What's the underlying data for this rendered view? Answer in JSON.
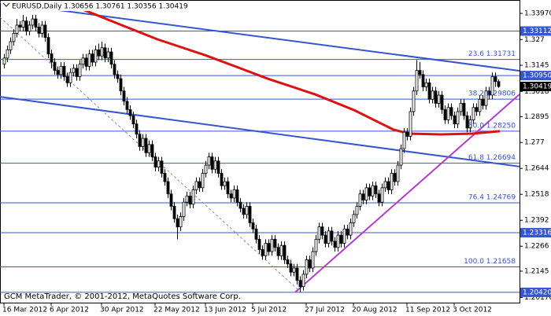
{
  "chart_data": {
    "type": "candlestick",
    "title": "EURUSD,Daily 1.30656 1.30761 1.30356 1.30419",
    "footer": "GCM MetaTrader, © 2001-2012, MetaQuotes Software Corp.",
    "categories": [
      "16 Mar 2012",
      null,
      null,
      null,
      null,
      null,
      null,
      null,
      null,
      null,
      null,
      null,
      null,
      null,
      null,
      "6 Apr 2012",
      null,
      null,
      null,
      null,
      null,
      null,
      null,
      null,
      null,
      null,
      null,
      null,
      null,
      null,
      null,
      "30 Apr 2012",
      null,
      null,
      null,
      null,
      null,
      null,
      null,
      null,
      null,
      null,
      null,
      null,
      null,
      null,
      null,
      null,
      "22 May 2012",
      null,
      null,
      null,
      null,
      null,
      null,
      null,
      null,
      null,
      null,
      null,
      null,
      null,
      null,
      null,
      "13 Jun 2012",
      null,
      null,
      null,
      null,
      null,
      null,
      null,
      null,
      null,
      null,
      null,
      null,
      null,
      null,
      "5 Jul 2012",
      null,
      null,
      null,
      null,
      null,
      null,
      null,
      null,
      null,
      null,
      null,
      null,
      null,
      null,
      null,
      null,
      "27 Jul 2012",
      null,
      null,
      null,
      null,
      null,
      null,
      null,
      null,
      null,
      null,
      null,
      null,
      null,
      null,
      "20 Aug 2012",
      null,
      null,
      null,
      null,
      null,
      null,
      null,
      null,
      null,
      null,
      null,
      null,
      null,
      null,
      null,
      null,
      "11 Sep 2012",
      null,
      null,
      null,
      null,
      null,
      null,
      null,
      null,
      null,
      null,
      null,
      null,
      null,
      null,
      "3 Oct 2012",
      null,
      null,
      null,
      null,
      null,
      null,
      null,
      null,
      null,
      null,
      null,
      null,
      null,
      null
    ],
    "open": [
      1.315,
      1.318,
      1.322,
      1.326,
      1.33,
      1.334,
      1.333,
      1.336,
      1.331,
      1.334,
      1.337,
      1.333,
      1.33,
      1.334,
      1.328,
      1.32,
      1.316,
      1.312,
      1.31,
      1.314,
      1.309,
      1.306,
      1.311,
      1.313,
      1.309,
      1.315,
      1.318,
      1.314,
      1.32,
      1.316,
      1.322,
      1.319,
      1.323,
      1.318,
      1.321,
      1.315,
      1.31,
      1.308,
      1.302,
      1.297,
      1.293,
      1.29,
      1.286,
      1.281,
      1.275,
      1.279,
      1.272,
      1.276,
      1.27,
      1.265,
      1.268,
      1.262,
      1.258,
      1.252,
      1.246,
      1.24,
      1.236,
      1.241,
      1.248,
      1.251,
      1.247,
      1.254,
      1.258,
      1.255,
      1.262,
      1.266,
      1.27,
      1.264,
      1.268,
      1.262,
      1.256,
      1.258,
      1.252,
      1.25,
      1.254,
      1.248,
      1.245,
      1.242,
      1.246,
      1.238,
      1.235,
      1.23,
      1.225,
      1.222,
      1.228,
      1.224,
      1.23,
      1.226,
      1.222,
      1.227,
      1.22,
      1.218,
      1.214,
      1.216,
      1.21,
      1.207,
      1.213,
      1.22,
      1.216,
      1.224,
      1.23,
      1.236,
      1.232,
      1.228,
      1.234,
      1.229,
      1.226,
      1.232,
      1.228,
      1.235,
      1.232,
      1.238,
      1.242,
      1.246,
      1.252,
      1.249,
      1.255,
      1.251,
      1.256,
      1.252,
      1.248,
      1.255,
      1.258,
      1.254,
      1.262,
      1.258,
      1.266,
      1.274,
      1.282,
      1.28,
      1.292,
      1.302,
      1.312,
      1.31,
      1.304,
      1.306,
      1.298,
      1.302,
      1.296,
      1.3,
      1.293,
      1.288,
      1.294,
      1.29,
      1.286,
      1.292,
      1.296,
      1.29,
      1.284,
      1.288,
      1.294,
      1.292,
      1.298,
      1.295,
      1.302,
      1.3,
      1.309,
      1.30656
    ],
    "high": [
      1.32,
      1.324,
      1.328,
      1.332,
      1.337,
      1.336,
      1.339,
      1.338,
      1.336,
      1.339,
      1.339,
      1.335,
      1.336,
      1.336,
      1.33,
      1.322,
      1.318,
      1.314,
      1.316,
      1.316,
      1.311,
      1.313,
      1.315,
      1.315,
      1.317,
      1.32,
      1.32,
      1.322,
      1.322,
      1.324,
      1.325,
      1.326,
      1.325,
      1.323,
      1.323,
      1.317,
      1.312,
      1.31,
      1.304,
      1.299,
      1.295,
      1.292,
      1.288,
      1.283,
      1.281,
      1.281,
      1.278,
      1.278,
      1.272,
      1.27,
      1.27,
      1.264,
      1.26,
      1.254,
      1.248,
      1.242,
      1.243,
      1.25,
      1.253,
      1.253,
      1.256,
      1.26,
      1.26,
      1.264,
      1.268,
      1.272,
      1.272,
      1.27,
      1.27,
      1.264,
      1.26,
      1.26,
      1.254,
      1.256,
      1.256,
      1.25,
      1.247,
      1.248,
      1.248,
      1.24,
      1.237,
      1.232,
      1.227,
      1.23,
      1.23,
      1.232,
      1.232,
      1.228,
      1.229,
      1.229,
      1.222,
      1.22,
      1.218,
      1.218,
      1.212,
      1.215,
      1.222,
      1.222,
      1.226,
      1.232,
      1.238,
      1.238,
      1.234,
      1.236,
      1.236,
      1.231,
      1.234,
      1.234,
      1.237,
      1.237,
      1.24,
      1.244,
      1.248,
      1.254,
      1.254,
      1.257,
      1.257,
      1.258,
      1.258,
      1.254,
      1.257,
      1.26,
      1.26,
      1.264,
      1.264,
      1.268,
      1.276,
      1.284,
      1.284,
      1.294,
      1.304,
      1.317,
      1.316,
      1.312,
      1.308,
      1.308,
      1.304,
      1.304,
      1.302,
      1.302,
      1.295,
      1.296,
      1.296,
      1.292,
      1.294,
      1.298,
      1.298,
      1.292,
      1.29,
      1.296,
      1.296,
      1.3,
      1.3,
      1.304,
      1.304,
      1.311,
      1.311,
      1.30761
    ],
    "low": [
      1.313,
      1.316,
      1.32,
      1.324,
      1.328,
      1.331,
      1.331,
      1.329,
      1.329,
      1.332,
      1.331,
      1.328,
      1.328,
      1.326,
      1.318,
      1.313,
      1.31,
      1.308,
      1.308,
      1.307,
      1.304,
      1.304,
      1.309,
      1.307,
      1.307,
      1.313,
      1.312,
      1.312,
      1.314,
      1.314,
      1.317,
      1.317,
      1.316,
      1.316,
      1.313,
      1.308,
      1.306,
      1.3,
      1.295,
      1.291,
      1.288,
      1.284,
      1.279,
      1.273,
      1.273,
      1.27,
      1.27,
      1.268,
      1.263,
      1.263,
      1.26,
      1.256,
      1.25,
      1.244,
      1.238,
      1.23,
      1.234,
      1.239,
      1.246,
      1.245,
      1.245,
      1.252,
      1.253,
      1.253,
      1.26,
      1.264,
      1.262,
      1.262,
      1.26,
      1.254,
      1.254,
      1.25,
      1.248,
      1.248,
      1.246,
      1.243,
      1.24,
      1.24,
      1.236,
      1.233,
      1.228,
      1.223,
      1.22,
      1.22,
      1.222,
      1.222,
      1.224,
      1.22,
      1.22,
      1.218,
      1.216,
      1.212,
      1.212,
      1.208,
      1.2042,
      1.205,
      1.211,
      1.214,
      1.214,
      1.222,
      1.228,
      1.23,
      1.226,
      1.226,
      1.227,
      1.224,
      1.224,
      1.226,
      1.226,
      1.23,
      1.23,
      1.236,
      1.24,
      1.244,
      1.247,
      1.247,
      1.249,
      1.249,
      1.25,
      1.246,
      1.246,
      1.253,
      1.252,
      1.252,
      1.256,
      1.256,
      1.264,
      1.272,
      1.278,
      1.278,
      1.29,
      1.3,
      1.308,
      1.302,
      1.302,
      1.296,
      1.296,
      1.294,
      1.294,
      1.291,
      1.286,
      1.286,
      1.288,
      1.284,
      1.284,
      1.29,
      1.288,
      1.282,
      1.282,
      1.286,
      1.29,
      1.29,
      1.293,
      1.293,
      1.298,
      1.298,
      1.304,
      1.30356
    ],
    "close": [
      1.318,
      1.322,
      1.326,
      1.33,
      1.334,
      1.333,
      1.336,
      1.331,
      1.334,
      1.337,
      1.333,
      1.33,
      1.334,
      1.328,
      1.32,
      1.316,
      1.312,
      1.31,
      1.314,
      1.309,
      1.306,
      1.311,
      1.313,
      1.309,
      1.315,
      1.318,
      1.314,
      1.32,
      1.316,
      1.322,
      1.319,
      1.323,
      1.318,
      1.321,
      1.315,
      1.31,
      1.308,
      1.302,
      1.297,
      1.293,
      1.29,
      1.286,
      1.281,
      1.275,
      1.279,
      1.272,
      1.276,
      1.27,
      1.265,
      1.268,
      1.262,
      1.258,
      1.252,
      1.246,
      1.24,
      1.236,
      1.241,
      1.248,
      1.251,
      1.247,
      1.254,
      1.258,
      1.255,
      1.262,
      1.266,
      1.27,
      1.264,
      1.268,
      1.262,
      1.256,
      1.258,
      1.252,
      1.25,
      1.254,
      1.248,
      1.245,
      1.242,
      1.246,
      1.238,
      1.235,
      1.23,
      1.225,
      1.222,
      1.228,
      1.224,
      1.23,
      1.226,
      1.222,
      1.227,
      1.22,
      1.218,
      1.214,
      1.216,
      1.21,
      1.207,
      1.213,
      1.22,
      1.216,
      1.224,
      1.23,
      1.236,
      1.232,
      1.228,
      1.234,
      1.229,
      1.226,
      1.232,
      1.228,
      1.235,
      1.232,
      1.238,
      1.242,
      1.246,
      1.252,
      1.249,
      1.255,
      1.251,
      1.256,
      1.252,
      1.248,
      1.255,
      1.258,
      1.254,
      1.262,
      1.258,
      1.266,
      1.274,
      1.282,
      1.28,
      1.292,
      1.302,
      1.312,
      1.31,
      1.304,
      1.306,
      1.298,
      1.302,
      1.296,
      1.3,
      1.293,
      1.288,
      1.294,
      1.29,
      1.286,
      1.292,
      1.296,
      1.29,
      1.284,
      1.288,
      1.294,
      1.292,
      1.298,
      1.295,
      1.302,
      1.3,
      1.309,
      1.3066,
      1.30419
    ],
    "ylim": [
      1.1992,
      1.3462
    ],
    "yticks": [
      {
        "value": 1.3397,
        "label": "1.33970"
      },
      1.327,
      1.3145,
      1.3018,
      1.2895,
      1.277,
      1.2644,
      1.2518,
      1.2392,
      1.2266,
      1.2145,
      {
        "value": 1.2017,
        "label": "1.20170"
      }
    ],
    "levels": [
      {
        "value": 1.31731,
        "label": "23.6 1.31731"
      },
      {
        "value": 1.29806,
        "label": "38.2 1.29806"
      },
      {
        "value": 1.2825,
        "label": "50.0 1.28250"
      },
      {
        "value": 1.26694,
        "label": "61.8 1.26694"
      },
      {
        "value": 1.24769,
        "label": "76.4 1.24769"
      },
      {
        "value": 1.21658,
        "label": "100.0 1.21658"
      }
    ],
    "price_boxes": [
      1.33112,
      {
        "value": 1.3095,
        "label": "1.30950"
      },
      1.23316,
      {
        "value": 1.2042,
        "label": "1.20420"
      }
    ],
    "current_price": 1.30419,
    "trend_lines": [
      {
        "color": "#3556d0",
        "x": [
          -1.25,
          163.75
        ],
        "y": [
          1.345,
          1.3118
        ]
      },
      {
        "color": "#3556d0",
        "x": [
          -1.25,
          163.75
        ],
        "y": [
          1.2992,
          1.2653
        ]
      },
      {
        "color": "#b03cc8",
        "x": [
          92.5,
          163.75
        ],
        "y": [
          1.2042,
          1.3004
        ]
      }
    ],
    "dashed_line": {
      "color": "#8a8a9a",
      "x": [
        -1.25,
        93.75
      ],
      "y": [
        1.3378,
        1.205
      ]
    },
    "moving_average": {
      "color": "#dd1111",
      "x": [
        23.75,
        36.25,
        48.75,
        63.75,
        73.75,
        83.75,
        98.75,
        111.25,
        118.75,
        123.75,
        128.75,
        138.75,
        148.75,
        157.5
      ],
      "y": [
        1.3424,
        1.3347,
        1.3271,
        1.3195,
        1.3138,
        1.308,
        1.3004,
        1.2927,
        1.287,
        1.2832,
        1.2813,
        1.2809,
        1.2813,
        1.2825
      ]
    },
    "level_color": "#3556d0"
  }
}
